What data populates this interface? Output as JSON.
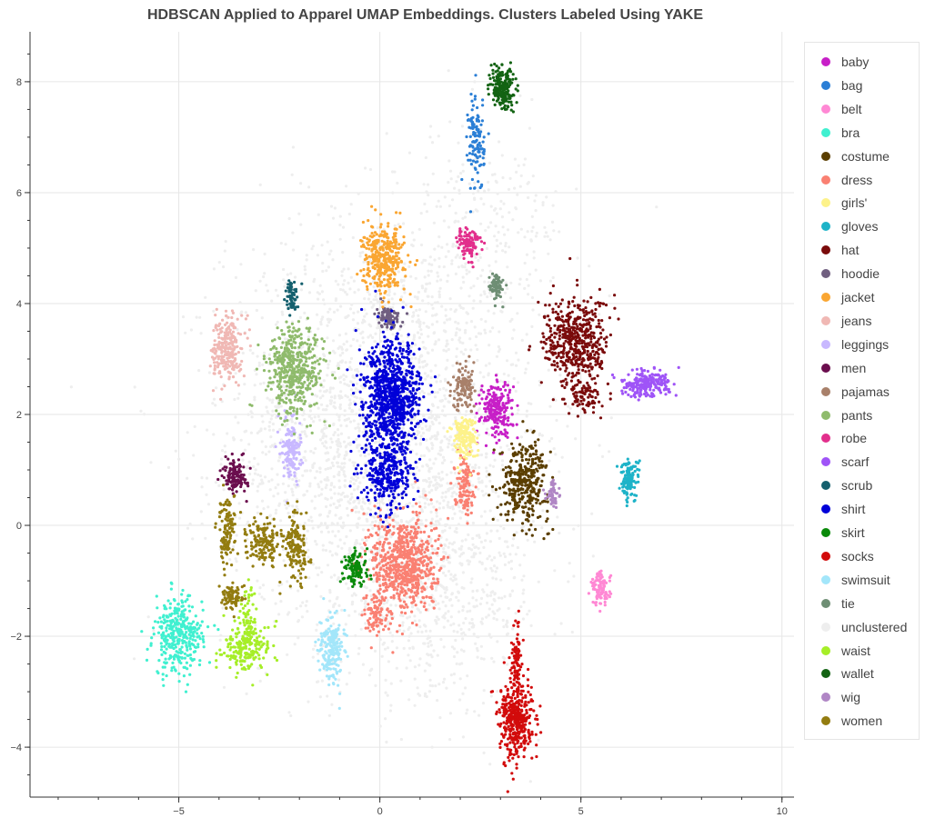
{
  "chart_data": {
    "type": "scatter",
    "title": "HDBSCAN Applied to Apparel UMAP Embeddings. Clusters Labeled Using YAKE",
    "xlabel": "",
    "ylabel": "",
    "xlim": [
      -8.7,
      10.3
    ],
    "ylim": [
      -4.9,
      8.9
    ],
    "x_ticks": [
      -5,
      0,
      5,
      10
    ],
    "y_ticks": [
      -4,
      -2,
      0,
      2,
      4,
      6,
      8
    ],
    "x_tick_labels": [
      "−5",
      "0",
      "5",
      "10"
    ],
    "y_tick_labels": [
      "−4",
      "−2",
      "0",
      "2",
      "4",
      "6",
      "8"
    ],
    "grid": true,
    "legend_position": "right",
    "series": [
      {
        "name": "baby",
        "color": "#c71fc7",
        "clusters": [
          {
            "x": 2.9,
            "y": 2.1,
            "sx": 0.2,
            "sy": 0.25,
            "n": 220
          }
        ]
      },
      {
        "name": "bag",
        "color": "#2b7fd6",
        "clusters": [
          {
            "x": 2.4,
            "y": 6.9,
            "sx": 0.1,
            "sy": 0.45,
            "n": 120
          }
        ]
      },
      {
        "name": "belt",
        "color": "#ff88d4",
        "clusters": [
          {
            "x": 5.5,
            "y": -1.15,
            "sx": 0.12,
            "sy": 0.15,
            "n": 100
          }
        ]
      },
      {
        "name": "bra",
        "color": "#40f0d0",
        "clusters": [
          {
            "x": -5.0,
            "y": -2.0,
            "sx": 0.3,
            "sy": 0.35,
            "n": 350
          }
        ]
      },
      {
        "name": "costume",
        "color": "#5b3e00",
        "clusters": [
          {
            "x": 3.6,
            "y": 0.8,
            "sx": 0.3,
            "sy": 0.35,
            "n": 350
          }
        ]
      },
      {
        "name": "dress",
        "color": "#fa8072",
        "clusters": [
          {
            "x": 0.6,
            "y": -0.7,
            "sx": 0.4,
            "sy": 0.45,
            "n": 700
          },
          {
            "x": 2.1,
            "y": 0.75,
            "sx": 0.12,
            "sy": 0.25,
            "n": 120
          },
          {
            "x": -0.1,
            "y": -1.6,
            "sx": 0.15,
            "sy": 0.2,
            "n": 80
          }
        ]
      },
      {
        "name": "girls'",
        "color": "#fdf28a",
        "clusters": [
          {
            "x": 2.1,
            "y": 1.6,
            "sx": 0.15,
            "sy": 0.2,
            "n": 160
          }
        ]
      },
      {
        "name": "gloves",
        "color": "#1eb3c8",
        "clusters": [
          {
            "x": 6.2,
            "y": 0.85,
            "sx": 0.12,
            "sy": 0.18,
            "n": 120
          }
        ]
      },
      {
        "name": "hat",
        "color": "#7a0b0b",
        "clusters": [
          {
            "x": 4.9,
            "y": 3.3,
            "sx": 0.4,
            "sy": 0.4,
            "n": 500
          },
          {
            "x": 5.1,
            "y": 2.3,
            "sx": 0.2,
            "sy": 0.15,
            "n": 80
          }
        ]
      },
      {
        "name": "hoodie",
        "color": "#705f80",
        "clusters": [
          {
            "x": 0.2,
            "y": 3.75,
            "sx": 0.15,
            "sy": 0.1,
            "n": 90
          }
        ]
      },
      {
        "name": "jacket",
        "color": "#faa632",
        "clusters": [
          {
            "x": 0.1,
            "y": 4.8,
            "sx": 0.25,
            "sy": 0.3,
            "n": 350
          }
        ]
      },
      {
        "name": "jeans",
        "color": "#f0b8b4",
        "clusters": [
          {
            "x": -3.8,
            "y": 3.2,
            "sx": 0.18,
            "sy": 0.3,
            "n": 250
          }
        ]
      },
      {
        "name": "leggings",
        "color": "#c8b8ff",
        "clusters": [
          {
            "x": -2.2,
            "y": 1.4,
            "sx": 0.12,
            "sy": 0.3,
            "n": 150
          }
        ]
      },
      {
        "name": "men",
        "color": "#6b0e4e",
        "clusters": [
          {
            "x": -3.6,
            "y": 0.9,
            "sx": 0.15,
            "sy": 0.15,
            "n": 130
          }
        ]
      },
      {
        "name": "pajamas",
        "color": "#a8806a",
        "clusters": [
          {
            "x": 2.1,
            "y": 2.5,
            "sx": 0.15,
            "sy": 0.2,
            "n": 120
          }
        ]
      },
      {
        "name": "pants",
        "color": "#8fbb6c",
        "clusters": [
          {
            "x": -2.1,
            "y": 2.8,
            "sx": 0.35,
            "sy": 0.4,
            "n": 450
          }
        ]
      },
      {
        "name": "robe",
        "color": "#e22f8c",
        "clusters": [
          {
            "x": 2.2,
            "y": 5.1,
            "sx": 0.15,
            "sy": 0.15,
            "n": 100
          }
        ]
      },
      {
        "name": "scarf",
        "color": "#9f54f7",
        "clusters": [
          {
            "x": 6.6,
            "y": 2.55,
            "sx": 0.3,
            "sy": 0.12,
            "n": 220
          }
        ]
      },
      {
        "name": "scrub",
        "color": "#15606e",
        "clusters": [
          {
            "x": -2.2,
            "y": 4.1,
            "sx": 0.08,
            "sy": 0.15,
            "n": 60
          }
        ]
      },
      {
        "name": "shirt",
        "color": "#0000d8",
        "clusters": [
          {
            "x": 0.3,
            "y": 2.3,
            "sx": 0.35,
            "sy": 0.5,
            "n": 900
          },
          {
            "x": 0.2,
            "y": 0.9,
            "sx": 0.3,
            "sy": 0.3,
            "n": 300
          }
        ]
      },
      {
        "name": "skirt",
        "color": "#0a8a0a",
        "clusters": [
          {
            "x": -0.6,
            "y": -0.75,
            "sx": 0.15,
            "sy": 0.15,
            "n": 120
          }
        ]
      },
      {
        "name": "socks",
        "color": "#d20b0b",
        "clusters": [
          {
            "x": 3.4,
            "y": -3.5,
            "sx": 0.2,
            "sy": 0.35,
            "n": 400
          },
          {
            "x": 3.4,
            "y": -2.4,
            "sx": 0.06,
            "sy": 0.3,
            "n": 80
          }
        ]
      },
      {
        "name": "swimsuit",
        "color": "#a3e6fa",
        "clusters": [
          {
            "x": -1.2,
            "y": -2.2,
            "sx": 0.15,
            "sy": 0.3,
            "n": 200
          }
        ]
      },
      {
        "name": "tie",
        "color": "#6e8e74",
        "clusters": [
          {
            "x": 2.9,
            "y": 4.3,
            "sx": 0.1,
            "sy": 0.12,
            "n": 70
          }
        ]
      },
      {
        "name": "unclustered",
        "color": "#eeeeee",
        "clusters": [
          {
            "x": 0.0,
            "y": 1.6,
            "sx": 1.9,
            "sy": 1.9,
            "n": 2600
          },
          {
            "x": 1.6,
            "y": -1.2,
            "sx": 1.3,
            "sy": 1.0,
            "n": 500
          },
          {
            "x": 2.6,
            "y": 5.2,
            "sx": 1.0,
            "sy": 1.0,
            "n": 250
          }
        ]
      },
      {
        "name": "waist",
        "color": "#a6ee28",
        "clusters": [
          {
            "x": -3.3,
            "y": -2.2,
            "sx": 0.3,
            "sy": 0.2,
            "n": 200
          },
          {
            "x": -3.3,
            "y": -1.7,
            "sx": 0.08,
            "sy": 0.3,
            "n": 60
          }
        ]
      },
      {
        "name": "wallet",
        "color": "#136313",
        "clusters": [
          {
            "x": 3.05,
            "y": 7.9,
            "sx": 0.15,
            "sy": 0.2,
            "n": 200
          }
        ]
      },
      {
        "name": "wig",
        "color": "#b086c5",
        "clusters": [
          {
            "x": 4.3,
            "y": 0.55,
            "sx": 0.08,
            "sy": 0.12,
            "n": 50
          }
        ]
      },
      {
        "name": "women",
        "color": "#937c10",
        "clusters": [
          {
            "x": -3.8,
            "y": -0.1,
            "sx": 0.12,
            "sy": 0.3,
            "n": 120
          },
          {
            "x": -2.9,
            "y": -0.3,
            "sx": 0.2,
            "sy": 0.2,
            "n": 150
          },
          {
            "x": -2.1,
            "y": -0.4,
            "sx": 0.15,
            "sy": 0.3,
            "n": 150
          },
          {
            "x": -3.7,
            "y": -1.3,
            "sx": 0.15,
            "sy": 0.12,
            "n": 80
          }
        ]
      }
    ]
  }
}
